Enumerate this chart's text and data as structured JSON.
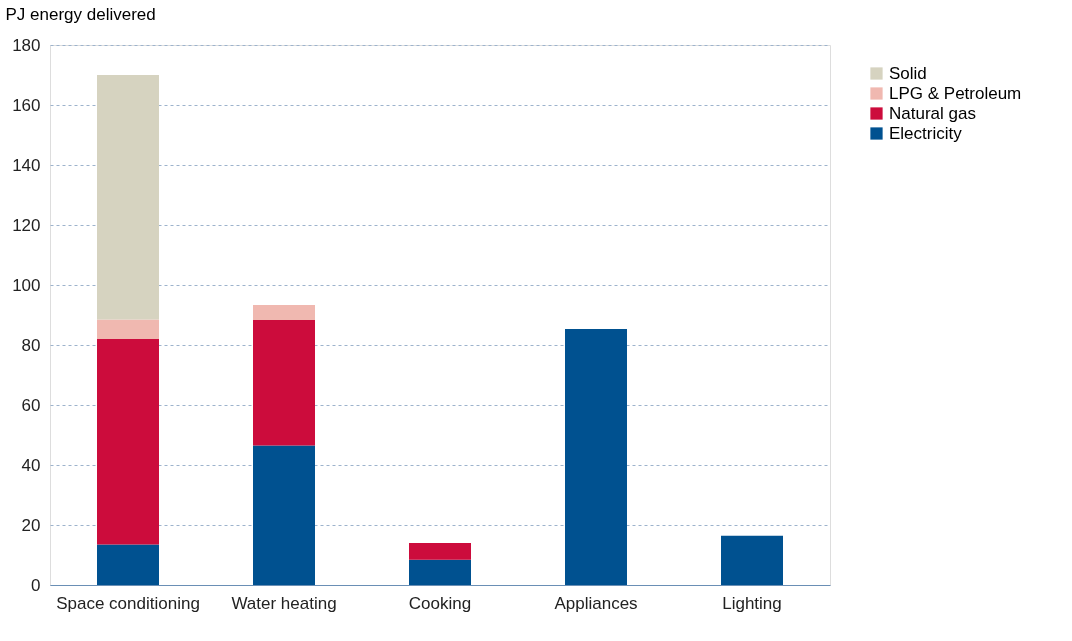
{
  "chart_data": {
    "type": "bar",
    "stacked": true,
    "ylabel": "PJ energy delivered",
    "categories": [
      "Space conditioning",
      "Water heating",
      "Cooking",
      "Appliances",
      "Lighting"
    ],
    "series": [
      {
        "name": "Electricity",
        "color": "#005190",
        "values": [
          13.5,
          46.5,
          8.4,
          85.3,
          16.4
        ]
      },
      {
        "name": "Natural gas",
        "color": "#cc0c3c",
        "values": [
          68.5,
          41.8,
          5.6,
          null,
          null
        ]
      },
      {
        "name": "LPG & Petroleum",
        "color": "#f0b8b0",
        "values": [
          6.5,
          5,
          null,
          null,
          null
        ]
      },
      {
        "name": "Solid",
        "color": "#d6d3c0",
        "values": [
          81.5,
          null,
          null,
          null,
          null
        ]
      }
    ],
    "ylim": [
      0,
      180
    ],
    "yticks": [
      0,
      20,
      40,
      60,
      80,
      100,
      120,
      140,
      160,
      180
    ],
    "grid": "y",
    "legend": "right"
  }
}
